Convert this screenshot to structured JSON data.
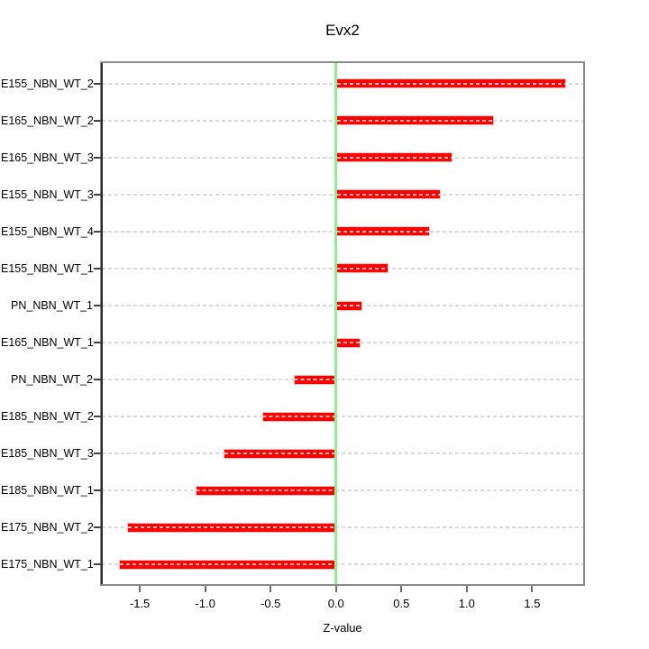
{
  "chart_data": {
    "type": "bar",
    "orientation": "horizontal",
    "title": "Evx2",
    "xlabel": "Z-value",
    "ylabel": "",
    "categories": [
      "E155_NBN_WT_2",
      "E165_NBN_WT_2",
      "E165_NBN_WT_3",
      "E155_NBN_WT_3",
      "E155_NBN_WT_4",
      "E155_NBN_WT_1",
      "PN_NBN_WT_1",
      "E165_NBN_WT_1",
      "PN_NBN_WT_2",
      "E185_NBN_WT_2",
      "E185_NBN_WT_3",
      "E185_NBN_WT_1",
      "E175_NBN_WT_2",
      "E175_NBN_WT_1"
    ],
    "values": [
      1.76,
      1.21,
      0.89,
      0.8,
      0.72,
      0.4,
      0.2,
      0.19,
      -0.32,
      -0.56,
      -0.86,
      -1.07,
      -1.6,
      -1.66
    ],
    "xlim": [
      -1.79,
      1.89
    ],
    "x_ticks": [
      -1.5,
      -1.0,
      -0.5,
      0.0,
      0.5,
      1.0,
      1.5
    ],
    "x_tick_labels": [
      "-1.5",
      "-1.0",
      "-0.5",
      "0.0",
      "0.5",
      "1.0",
      "1.5"
    ],
    "grid": true,
    "legend": false,
    "zero_line_value": 0,
    "colors": {
      "bar": "#ff0000",
      "bar_border": "#ffc2c2",
      "zero_line": "#90ee90",
      "grid": "#d9d9d9",
      "axis_box": "#8a8a8a",
      "text": "#000000"
    }
  }
}
